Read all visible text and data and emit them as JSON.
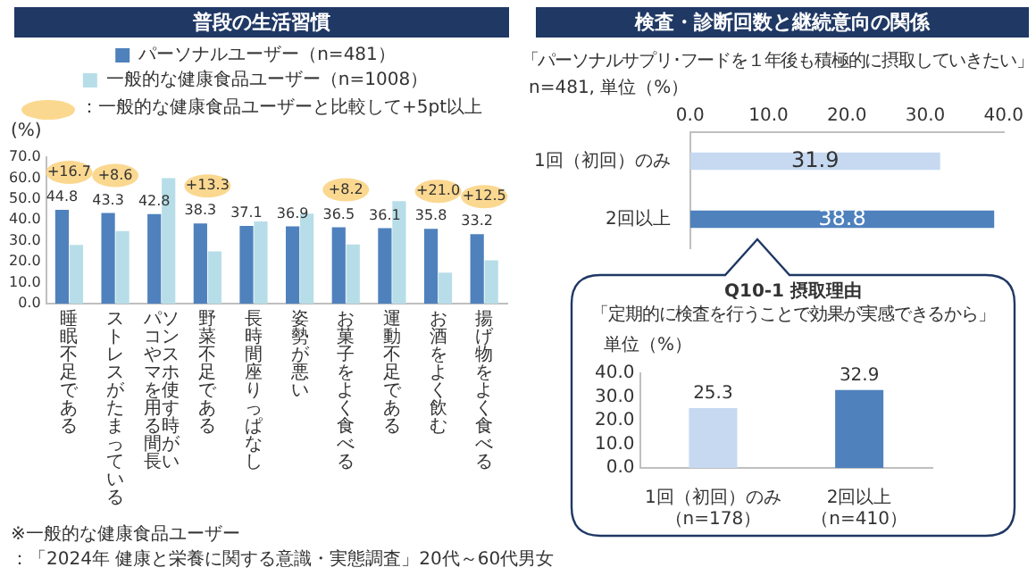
{
  "chart_data": [
    {
      "type": "bar",
      "title": "普段の生活習慣",
      "ylabel": "(%)",
      "legend": "top",
      "categories": [
        "睡眠不足である",
        "ストレスがたまっている",
        "パソコンやスマホを使用する時間が長い",
        "野菜不足である",
        "長時間座りっぱなし",
        "姿勢が悪い",
        "お菓子をよく食べる",
        "運動不足である",
        "お酒をよく飲む",
        "揚げ物をよく食べる"
      ],
      "series": [
        {
          "name": "パーソナルユーザー（n=481）",
          "color": "#4f81bd",
          "values": [
            44.8,
            43.3,
            42.8,
            38.3,
            37.1,
            36.9,
            36.5,
            36.1,
            35.8,
            33.2
          ],
          "value_labels": [
            "44.8",
            "43.3",
            "42.8",
            "38.3",
            "37.1",
            "36.9",
            "36.5",
            "36.1",
            "35.8",
            "33.2"
          ]
        },
        {
          "name": "一般的な健康食品ユーザー（n=1008）",
          "color": "#b7dee8",
          "values": [
            28.1,
            34.7,
            60.0,
            25.0,
            39.3,
            43.0,
            28.3,
            49.0,
            14.8,
            20.7
          ]
        }
      ],
      "ylim": [
        0,
        70
      ],
      "yticks": [
        {
          "value": 0,
          "label": "0.0"
        },
        {
          "value": 10,
          "label": "10.0"
        },
        {
          "value": 20,
          "label": "20.0"
        },
        {
          "value": 30,
          "label": "30.0"
        },
        {
          "value": 40,
          "label": "40.0"
        },
        {
          "value": 50,
          "label": "50.0"
        },
        {
          "value": 60,
          "label": "60.0"
        },
        {
          "value": 70,
          "label": "70.0"
        }
      ],
      "annotations": [
        "：一般的な健康食品ユーザーと比較して+5pt以上",
        {
          "text": "+16.7",
          "x": "睡眠不足である",
          "y": 44.8
        },
        {
          "text": "+8.6",
          "x": "ストレスがたまっている",
          "y": 43.3
        },
        {
          "text": "+13.3",
          "x": "野菜不足である",
          "y": 38.3
        },
        {
          "text": "+8.2",
          "x": "お菓子をよく食べる",
          "y": 36.5
        },
        {
          "text": "+21.0",
          "x": "お酒をよく飲む",
          "y": 35.8
        },
        {
          "text": "+12.5",
          "x": "揚げ物をよく食べる",
          "y": 33.2
        },
        "※一般的な健康食品ユーザー",
        "：「2024年 健康と栄養に関する意識・実態調査」20代～60代男女"
      ]
    },
    {
      "type": "bar",
      "orientation": "horizontal",
      "title": "検査・診断回数と継続意向の関係",
      "subtitle": "「パーソナルサプリ･フードを１年後も積極的に摂取していきたい」",
      "xlabel": "n=481, 単位（%）",
      "categories": [
        "1回（初回）のみ",
        "2回以上"
      ],
      "values": [
        31.9,
        38.8
      ],
      "colors": [
        "#c6d9f1",
        "#4f81bd"
      ],
      "data_labels": true,
      "xlim": [
        0,
        40
      ],
      "xticks": [
        {
          "value": 0,
          "label": "0.0"
        },
        {
          "value": 10,
          "label": "10.0"
        },
        {
          "value": 20,
          "label": "20.0"
        },
        {
          "value": 30,
          "label": "30.0"
        },
        {
          "value": 40,
          "label": "40.0"
        }
      ]
    },
    {
      "type": "bar",
      "title": "Q10-1 摂取理由",
      "subtitle": "「定期的に検査を行うことで効果が実感できるから」",
      "ylabel": "単位（%）",
      "categories": [
        "1回（初回）のみ（n=178）",
        "2回以上（n=410）"
      ],
      "values": [
        25.3,
        32.9
      ],
      "colors": [
        "#c6d9f1",
        "#4f81bd"
      ],
      "data_labels": true,
      "ylim": [
        0,
        40
      ],
      "yticks": [
        {
          "value": 0,
          "label": "0.0"
        },
        {
          "value": 10,
          "label": "10.0"
        },
        {
          "value": 20,
          "label": "20.0"
        },
        {
          "value": 30,
          "label": "30.0"
        },
        {
          "value": 40,
          "label": "40.0"
        }
      ]
    }
  ]
}
